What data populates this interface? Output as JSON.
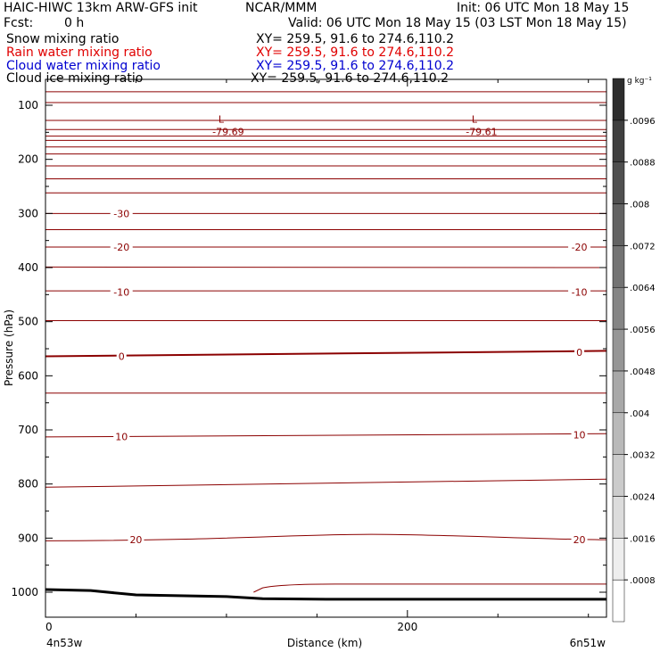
{
  "header": {
    "title": "HAIC-HIWC 13km ARW-GFS init",
    "org": "NCAR/MMM",
    "init": "Init: 06 UTC Mon 18 May 15",
    "fcst_label": "Fcst:",
    "fcst_value": "0 h",
    "valid": "Valid: 06 UTC Mon 18 May 15 (03 LST Mon 18 May 15)"
  },
  "fields": [
    {
      "name": "Snow mixing ratio",
      "xy": "XY= 259.5, 91.6 to 274.6,110.2",
      "color": "#000000"
    },
    {
      "name": "Rain water mixing ratio",
      "xy": "XY= 259.5, 91.6 to 274.6,110.2",
      "color": "#e00000"
    },
    {
      "name": "Cloud water mixing ratio",
      "xy": "XY= 259.5, 91.6 to 274.6,110.2",
      "color": "#0000d0"
    },
    {
      "name": "Cloud ice mixing ratio",
      "xy": "XY= 259.5, 91.6 to 274.6,110.2",
      "color": "#000000"
    }
  ],
  "chart_data": {
    "type": "contour",
    "xlabel": "Distance (km)",
    "ylabel": "Pressure (hPa)",
    "xlim": [
      0,
      310
    ],
    "ylim": [
      1050,
      70
    ],
    "x_ticks": [
      0,
      200
    ],
    "y_ticks": [
      100,
      200,
      300,
      400,
      500,
      600,
      700,
      800,
      900,
      1000
    ],
    "x_endpoints": [
      "4n53w",
      "6n51w"
    ],
    "colorbar": {
      "unit": "g kg⁻¹",
      "ticks": [
        ".0008",
        ".0016",
        ".0024",
        ".0032",
        ".004",
        ".0048",
        ".0056",
        ".0064",
        ".0072",
        ".008",
        ".0088",
        ".0096"
      ]
    },
    "contour_color": "#8b0000",
    "contour_levels_label": [
      {
        "value": "-30",
        "x": 42,
        "p": 300
      },
      {
        "value": "-20",
        "x": 42,
        "p": 362
      },
      {
        "value": "-20",
        "x": 295,
        "p": 362
      },
      {
        "value": "-10",
        "x": 42,
        "p": 445
      },
      {
        "value": "-10",
        "x": 295,
        "p": 445
      },
      {
        "value": "0",
        "x": 42,
        "p": 564
      },
      {
        "value": "0",
        "x": 295,
        "p": 557
      },
      {
        "value": "10",
        "x": 42,
        "p": 712
      },
      {
        "value": "10",
        "x": 295,
        "p": 709
      },
      {
        "value": "20",
        "x": 50,
        "p": 903
      },
      {
        "value": "20",
        "x": 295,
        "p": 903
      }
    ],
    "lows": [
      {
        "label": "L",
        "value": "-79.69",
        "x": 100,
        "p": 89
      },
      {
        "label": "L",
        "value": "-79.61",
        "x": 240,
        "p": 89
      }
    ],
    "isotherms": [
      {
        "p": [
          75,
          75
        ]
      },
      {
        "p": [
          95,
          95
        ]
      },
      {
        "p": [
          128,
          128
        ]
      },
      {
        "p": [
          145,
          145
        ]
      },
      {
        "p": [
          157,
          157
        ]
      },
      {
        "p": [
          165,
          165
        ]
      },
      {
        "p": [
          177,
          177
        ]
      },
      {
        "p": [
          190,
          190
        ]
      },
      {
        "p": [
          212,
          212
        ]
      },
      {
        "p": [
          236,
          236
        ]
      },
      {
        "p": [
          262,
          262
        ]
      },
      {
        "p": [
          300,
          300
        ]
      },
      {
        "p": [
          330,
          330
        ]
      },
      {
        "p": [
          362,
          362
        ]
      },
      {
        "p": [
          399,
          400
        ]
      },
      {
        "p": [
          443,
          443
        ]
      },
      {
        "p": [
          498,
          498
        ]
      },
      {
        "p": [
          564,
          554
        ],
        "bold": true
      },
      {
        "p": [
          632,
          632
        ]
      },
      {
        "p": [
          713,
          707
        ]
      },
      {
        "p": [
          806,
          791
        ]
      },
      {
        "p": [
          905,
          903
        ],
        "bump": 893
      },
      {
        "p": [
          985,
          985
        ],
        "partial": true
      }
    ],
    "terrain": [
      [
        0,
        995
      ],
      [
        25,
        997
      ],
      [
        50,
        1005
      ],
      [
        100,
        1008
      ],
      [
        120,
        1012
      ],
      [
        155,
        1013
      ],
      [
        310,
        1013
      ]
    ]
  }
}
